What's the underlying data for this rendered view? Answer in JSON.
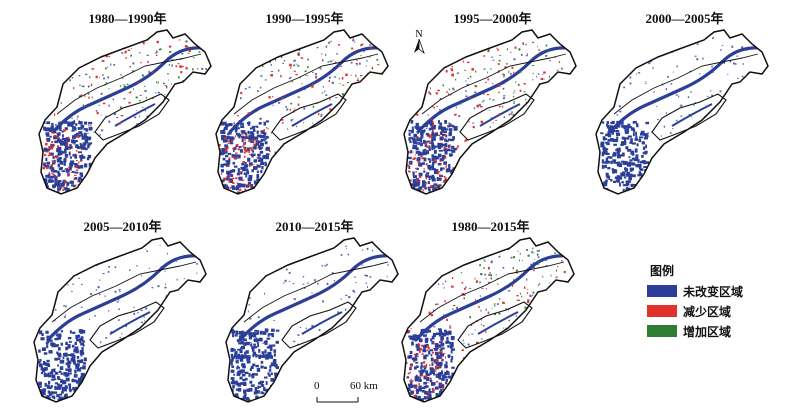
{
  "panels": [
    {
      "title": "1980—1990年",
      "variant": "mixed"
    },
    {
      "title": "1990—1995年",
      "variant": "mixed"
    },
    {
      "title": "1995—2000年",
      "variant": "mixed"
    },
    {
      "title": "2000—2005年",
      "variant": "unchanged"
    },
    {
      "title": "2005—2010年",
      "variant": "unchanged"
    },
    {
      "title": "2010—2015年",
      "variant": "unchanged"
    },
    {
      "title": "1980—2015年",
      "variant": "mixed"
    }
  ],
  "north_arrow": {
    "label": "N"
  },
  "scale_bar": {
    "start": "0",
    "end": "60 km"
  },
  "legend": {
    "title": "图例",
    "items": [
      {
        "label": "未改变区域",
        "color": "#2b3f98"
      },
      {
        "label": "减少区域",
        "color": "#e0312b"
      },
      {
        "label": "增加区域",
        "color": "#2e7d32"
      }
    ]
  }
}
